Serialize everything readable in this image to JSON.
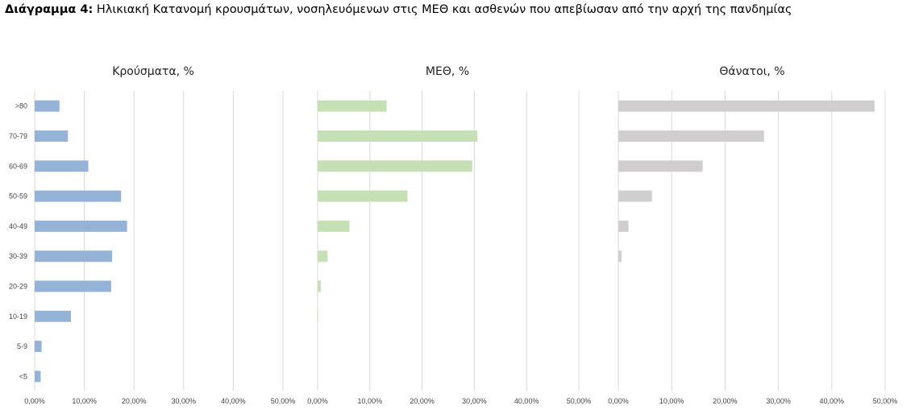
{
  "figure": {
    "title_prefix": "Διάγραμμα 4:",
    "title_text": " Ηλικιακή Κατανομή κρουσμάτων, νοσηλευόμενων στις ΜΕΘ και ασθενών που απεβίωσαν από την αρχή της πανδημίας"
  },
  "chart_data": [
    {
      "type": "bar",
      "orientation": "horizontal",
      "title": "Κρούσματα, %",
      "categories": [
        ">80",
        "70-79",
        "60-69",
        "50-59",
        "40-49",
        "30-39",
        "20-29",
        "10-19",
        "5-9",
        "<5"
      ],
      "values": [
        5.0,
        6.7,
        10.8,
        17.4,
        18.6,
        15.6,
        15.4,
        7.3,
        1.4,
        1.2
      ],
      "xlim": [
        0,
        50
      ],
      "xticks": [
        "0,00%",
        "10,00%",
        "20,00%",
        "30,00%",
        "40,00%",
        "50,00%"
      ],
      "grid": true,
      "color": "#95b3d7"
    },
    {
      "type": "bar",
      "orientation": "horizontal",
      "title": "ΜΕΘ, %",
      "categories": [
        ">80",
        "70-79",
        "60-69",
        "50-59",
        "40-49",
        "30-39",
        "20-29",
        "10-19",
        "5-9",
        "<5"
      ],
      "values": [
        13.2,
        30.6,
        29.6,
        17.2,
        6.1,
        1.9,
        0.6,
        0.1,
        0,
        0
      ],
      "xlim": [
        0,
        50
      ],
      "xticks": [
        "0,00%",
        "10,00%",
        "20,00%",
        "30,00%",
        "40,00%",
        "50,00%"
      ],
      "grid": true,
      "color": "#c5e0b4"
    },
    {
      "type": "bar",
      "orientation": "horizontal",
      "title": "Θάνατοι, %",
      "categories": [
        ">80",
        "70-79",
        "60-69",
        "50-59",
        "40-49",
        "30-39",
        "20-29",
        "10-19",
        "5-9",
        "<5"
      ],
      "values": [
        48.0,
        27.3,
        15.8,
        6.3,
        1.9,
        0.6,
        0,
        0,
        0,
        0
      ],
      "xlim": [
        0,
        50
      ],
      "xticks": [
        "0,00%",
        "10,00%",
        "20,00%",
        "30,00%",
        "40,00%",
        "50,00%"
      ],
      "grid": true,
      "color": "#d0cece"
    }
  ]
}
